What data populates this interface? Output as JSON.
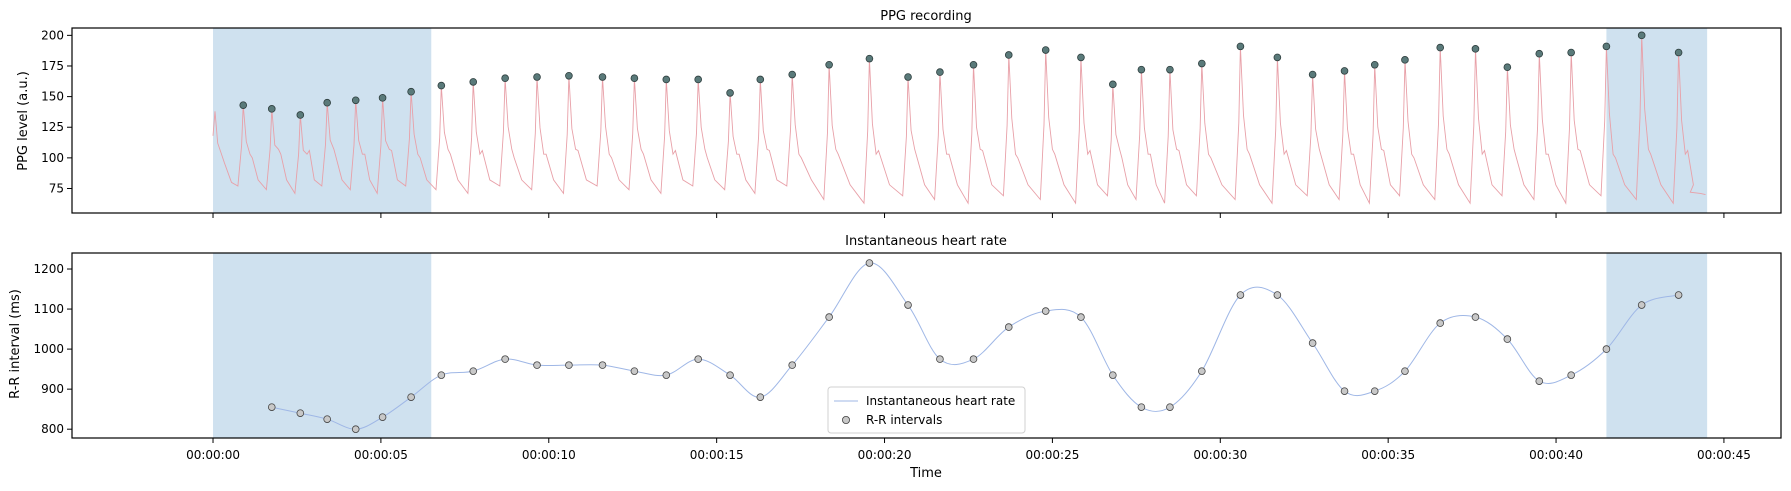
{
  "colors": {
    "shade": "#cfe1ef",
    "ppg_line": "#e8a0a8",
    "peak_marker": "#5a7a7a",
    "hr_line": "#9fb7e6",
    "rr_marker": "#c8c8c8"
  },
  "chart_data": [
    {
      "type": "line",
      "title": "PPG recording",
      "ylabel": "PPG level (a.u.)",
      "xlabel": "",
      "xlim": [
        -4.2,
        46.7
      ],
      "ylim": [
        55,
        206
      ],
      "x_ticks": [
        0,
        5,
        10,
        15,
        20,
        25,
        30,
        35,
        40,
        45
      ],
      "y_ticks": [
        75,
        100,
        125,
        150,
        175,
        200
      ],
      "y_tick_labels": [
        "75",
        "100",
        "125",
        "150",
        "175",
        "200"
      ],
      "shaded_regions": [
        [
          0,
          6.5
        ],
        [
          41.5,
          44.5
        ]
      ],
      "series": [
        {
          "kind": "peaks",
          "x": [
            0.9,
            1.75,
            2.6,
            3.4,
            4.25,
            5.05,
            5.9,
            6.8,
            7.75,
            8.7,
            9.65,
            10.6,
            11.6,
            12.55,
            13.5,
            14.45,
            15.4,
            16.3,
            17.25,
            18.35,
            19.55,
            20.7,
            21.65,
            22.65,
            23.7,
            24.8,
            25.85,
            26.8,
            27.65,
            28.5,
            29.45,
            30.6,
            31.7,
            32.75,
            33.7,
            34.6,
            35.5,
            36.55,
            37.6,
            38.55,
            39.5,
            40.45,
            41.5,
            42.55,
            43.65
          ],
          "y": [
            143,
            140,
            135,
            145,
            147,
            149,
            154,
            159,
            162,
            165,
            166,
            167,
            166,
            165,
            164,
            164,
            153,
            164,
            168,
            176,
            181,
            166,
            170,
            176,
            184,
            188,
            182,
            160,
            172,
            172,
            177,
            191,
            182,
            168,
            171,
            176,
            180,
            190,
            189,
            174,
            185,
            186,
            191,
            200,
            186
          ]
        }
      ]
    },
    {
      "type": "line",
      "title": "Instantaneous heart rate",
      "ylabel": "R-R interval (ms)",
      "xlabel": "Time",
      "xlim": [
        -4.2,
        46.7
      ],
      "ylim": [
        778,
        1240
      ],
      "x_ticks": [
        0,
        5,
        10,
        15,
        20,
        25,
        30,
        35,
        40,
        45
      ],
      "x_tick_labels": [
        "00:00:00",
        "00:00:05",
        "00:00:10",
        "00:00:15",
        "00:00:20",
        "00:00:25",
        "00:00:30",
        "00:00:35",
        "00:00:40",
        "00:00:45"
      ],
      "y_ticks": [
        800,
        900,
        1000,
        1100,
        1200
      ],
      "y_tick_labels": [
        "800",
        "900",
        "1000",
        "1100",
        "1200"
      ],
      "shaded_regions": [
        [
          0,
          6.5
        ],
        [
          41.5,
          44.5
        ]
      ],
      "legend": {
        "position": "lower-center",
        "entries": [
          "Instantaneous heart rate",
          "R-R intervals"
        ]
      },
      "series": [
        {
          "name": "R-R intervals",
          "kind": "points",
          "x": [
            1.75,
            2.6,
            3.4,
            4.25,
            5.05,
            5.9,
            6.8,
            7.75,
            8.7,
            9.65,
            10.6,
            11.6,
            12.55,
            13.5,
            14.45,
            15.4,
            16.3,
            17.25,
            18.35,
            19.55,
            20.7,
            21.65,
            22.65,
            23.7,
            24.8,
            25.85,
            26.8,
            27.65,
            28.5,
            29.45,
            30.6,
            31.7,
            32.75,
            33.7,
            34.6,
            35.5,
            36.55,
            37.6,
            38.55,
            39.5,
            40.45,
            41.5,
            42.55,
            43.65
          ],
          "y": [
            855,
            840,
            825,
            800,
            830,
            880,
            935,
            945,
            975,
            960,
            960,
            960,
            945,
            935,
            975,
            935,
            880,
            960,
            1080,
            1215,
            1110,
            975,
            975,
            1055,
            1095,
            1080,
            935,
            855,
            855,
            945,
            1135,
            1135,
            1015,
            895,
            895,
            945,
            1065,
            1080,
            1025,
            920,
            935,
            1000,
            1110,
            1135
          ]
        }
      ]
    }
  ]
}
